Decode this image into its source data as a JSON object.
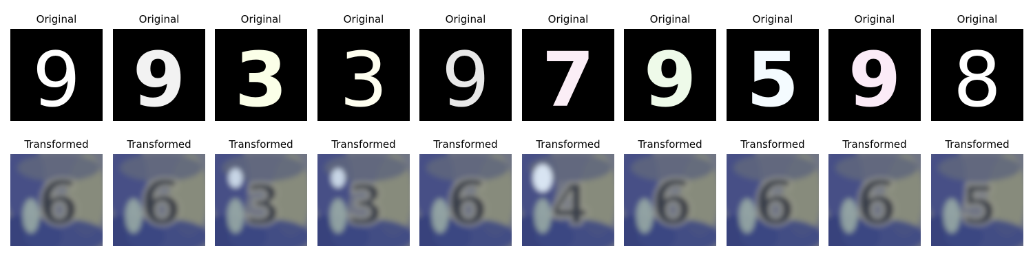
{
  "original_label": "Original",
  "transformed_label": "Transformed",
  "original_digits": [
    "9",
    "9",
    "3",
    "3",
    "9",
    "7",
    "9",
    "5",
    "9",
    "8"
  ],
  "transformed_digits": [
    "6",
    "6",
    "3",
    "3",
    "6",
    "4",
    "6",
    "6",
    "6",
    "5"
  ],
  "colors": {
    "background": "#ffffff",
    "original_panel": "#000000",
    "svhn_blue": "#3e4a86",
    "svhn_gray": "#8e919c"
  }
}
